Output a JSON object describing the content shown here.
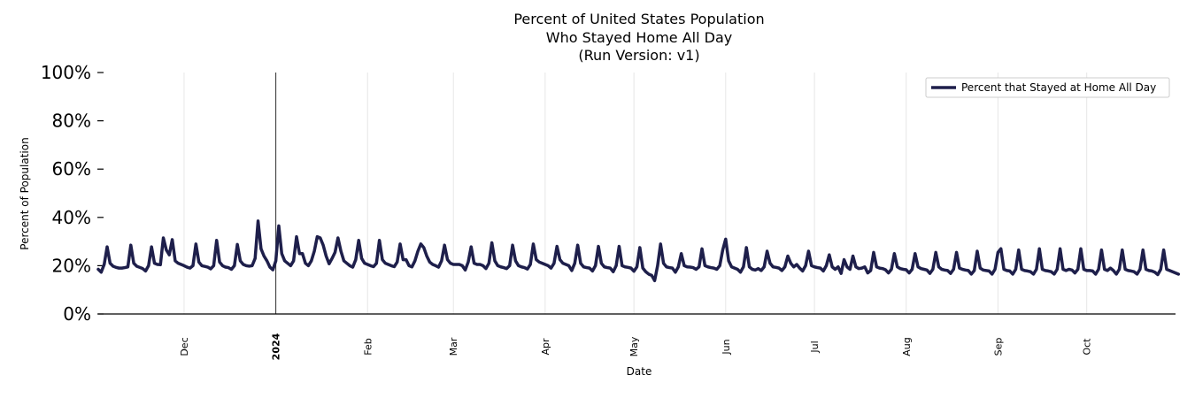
{
  "chart_data": {
    "type": "line",
    "title": [
      "Percent of United States Population",
      "Who Stayed Home All Day",
      "(Run Version: v1)"
    ],
    "xlabel": "Date",
    "ylabel": "Percent of Population",
    "ylim": [
      0,
      100
    ],
    "yticks": [
      0,
      20,
      40,
      60,
      80,
      100
    ],
    "ytick_labels": [
      "0%",
      "20%",
      "40%",
      "60%",
      "80%",
      "100%"
    ],
    "x_range": [
      "2023-11-02",
      "2024-10-31"
    ],
    "xticks": [
      {
        "date": "2023-12-01",
        "label": "Dec",
        "bold": false
      },
      {
        "date": "2024-01-01",
        "label": "2024",
        "bold": true
      },
      {
        "date": "2024-02-01",
        "label": "Feb",
        "bold": false
      },
      {
        "date": "2024-03-01",
        "label": "Mar",
        "bold": false
      },
      {
        "date": "2024-04-01",
        "label": "Apr",
        "bold": false
      },
      {
        "date": "2024-05-01",
        "label": "May",
        "bold": false
      },
      {
        "date": "2024-06-01",
        "label": "Jun",
        "bold": false
      },
      {
        "date": "2024-07-01",
        "label": "Jul",
        "bold": false
      },
      {
        "date": "2024-08-01",
        "label": "Aug",
        "bold": false
      },
      {
        "date": "2024-09-01",
        "label": "Sep",
        "bold": false
      },
      {
        "date": "2024-10-01",
        "label": "Oct",
        "bold": false
      }
    ],
    "grid": "vertical",
    "legend_position": "top-right",
    "series": [
      {
        "name": "Percent that Stayed at Home All Day",
        "color": "#1e1f4b",
        "start_date": "2023-11-02",
        "values": [
          18.5,
          17.3,
          20.5,
          27.8,
          21.0,
          19.8,
          19.3,
          19.0,
          19.0,
          19.2,
          19.5,
          28.5,
          21.0,
          19.8,
          19.3,
          18.8,
          17.8,
          20.0,
          27.8,
          21.0,
          20.5,
          20.4,
          31.5,
          26.5,
          24.5,
          30.8,
          22.0,
          21.0,
          20.5,
          20.0,
          19.4,
          19.0,
          20.0,
          29.0,
          21.5,
          20.0,
          19.7,
          19.4,
          18.7,
          20.0,
          30.5,
          21.5,
          20.0,
          19.4,
          19.2,
          18.5,
          20.0,
          28.8,
          22.0,
          20.5,
          20.0,
          19.8,
          20.0,
          23.0,
          38.5,
          27.0,
          24.0,
          22.0,
          19.4,
          18.3,
          22.0,
          36.5,
          25.0,
          22.0,
          21.0,
          20.0,
          22.0,
          32.0,
          25.0,
          25.0,
          21.0,
          20.0,
          22.0,
          26.0,
          32.0,
          31.5,
          28.5,
          24.0,
          20.8,
          23.0,
          25.5,
          31.5,
          26.0,
          22.0,
          21.0,
          20.0,
          19.4,
          22.5,
          30.5,
          23.0,
          21.0,
          20.5,
          20.0,
          19.6,
          21.0,
          30.5,
          22.5,
          21.0,
          20.5,
          20.0,
          19.6,
          21.5,
          29.0,
          22.5,
          22.5,
          20.0,
          19.5,
          22.0,
          26.0,
          29.0,
          27.5,
          24.0,
          21.5,
          20.5,
          20.0,
          19.4,
          22.0,
          28.5,
          22.5,
          21.0,
          20.5,
          20.5,
          20.5,
          20.0,
          18.2,
          21.5,
          27.8,
          21.0,
          20.5,
          20.5,
          20.0,
          18.8,
          21.0,
          29.5,
          22.0,
          20.0,
          19.5,
          19.2,
          18.8,
          20.0,
          28.5,
          22.0,
          20.0,
          19.5,
          19.2,
          18.6,
          20.5,
          29.0,
          22.5,
          21.5,
          21.0,
          20.5,
          20.0,
          19.0,
          21.0,
          28.0,
          22.5,
          21.0,
          20.5,
          20.0,
          18.0,
          21.0,
          28.5,
          21.0,
          19.5,
          19.2,
          19.0,
          17.8,
          20.0,
          28.0,
          21.0,
          19.5,
          19.2,
          19.0,
          17.5,
          20.0,
          28.0,
          20.0,
          19.5,
          19.3,
          19.0,
          17.7,
          19.5,
          27.5,
          19.0,
          17.5,
          16.5,
          16.0,
          13.8,
          20.0,
          29.0,
          21.0,
          19.5,
          19.2,
          19.0,
          17.3,
          19.5,
          25.0,
          20.0,
          19.5,
          19.4,
          19.2,
          18.5,
          19.5,
          27.0,
          20.0,
          19.5,
          19.2,
          19.0,
          18.5,
          20.0,
          26.5,
          31.0,
          22.0,
          19.5,
          19.0,
          18.5,
          17.3,
          19.5,
          27.5,
          19.5,
          18.5,
          18.2,
          18.8,
          18.0,
          19.5,
          26.0,
          21.0,
          19.5,
          19.3,
          19.0,
          18.0,
          19.5,
          24.0,
          21.0,
          19.5,
          20.5,
          19.0,
          17.8,
          20.0,
          26.0,
          20.0,
          19.5,
          19.2,
          19.0,
          17.8,
          20.0,
          24.5,
          19.5,
          18.5,
          19.5,
          16.8,
          22.5,
          19.5,
          18.5,
          24.0,
          19.5,
          18.8,
          19.0,
          19.5,
          17.0,
          18.0,
          25.5,
          19.5,
          19.0,
          18.8,
          18.3,
          17.0,
          18.5,
          25.0,
          19.5,
          18.8,
          18.5,
          18.3,
          17.0,
          18.5,
          25.0,
          19.5,
          18.8,
          18.5,
          18.2,
          16.8,
          18.5,
          25.5,
          19.5,
          18.5,
          18.2,
          18.0,
          16.8,
          18.5,
          25.5,
          19.0,
          18.5,
          18.2,
          18.0,
          16.5,
          18.0,
          26.0,
          19.0,
          18.2,
          18.0,
          17.8,
          16.5,
          18.5,
          25.5,
          27.0,
          18.5,
          18.0,
          17.8,
          16.5,
          18.5,
          26.5,
          18.5,
          18.0,
          17.8,
          17.5,
          16.5,
          18.5,
          27.0,
          18.5,
          18.0,
          17.8,
          17.5,
          16.5,
          18.5,
          27.0,
          18.5,
          18.0,
          18.5,
          18.2,
          17.0,
          18.5,
          27.0,
          18.5,
          18.0,
          18.0,
          17.8,
          16.5,
          18.5,
          26.5,
          18.5,
          18.0,
          19.0,
          18.0,
          16.5,
          18.5,
          26.5,
          18.5,
          18.0,
          17.8,
          17.5,
          16.5,
          18.5,
          26.5,
          18.5,
          18.0,
          17.8,
          17.3,
          16.3,
          18.5,
          26.5,
          18.5,
          18.0,
          17.5,
          17.0,
          16.5
        ]
      }
    ]
  }
}
